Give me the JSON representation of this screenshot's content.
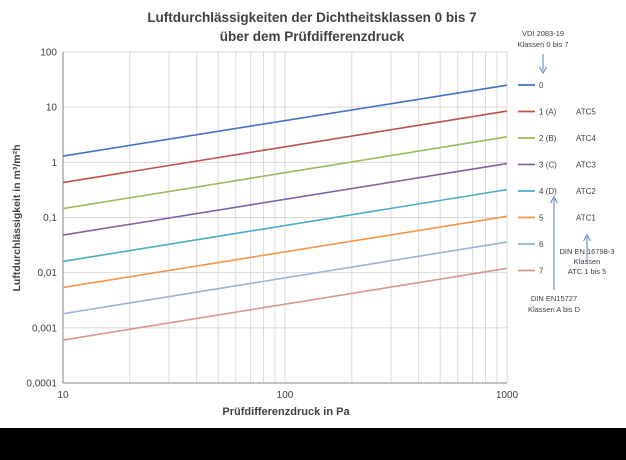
{
  "chart_data": {
    "type": "line",
    "title_lines": [
      "Luftdurchlässigkeiten der Dichtheitsklassen 0 bis 7",
      "über dem Prüfdifferenzdruck"
    ],
    "xlabel": "Prüfdifferenzdruck in Pa",
    "ylabel": "Luftdurchlässigkeit in m³/m²h",
    "x_scale": "log",
    "y_scale": "log",
    "xlim": [
      10,
      1000
    ],
    "ylim": [
      0.0001,
      100
    ],
    "x_ticks": [
      "10",
      "100",
      "1000"
    ],
    "y_ticks": [
      "0,0001",
      "0,001",
      "0,01",
      "0,1",
      "1",
      "10",
      "100"
    ],
    "grid": true,
    "legend_position": "right",
    "series": [
      {
        "name": "0",
        "atc": "",
        "color": "#4472c4",
        "x": [
          10,
          1000
        ],
        "values": [
          1.3,
          25
        ]
      },
      {
        "name": "1 (A)",
        "atc": "ATC5",
        "color": "#c0504d",
        "x": [
          10,
          1000
        ],
        "values": [
          0.43,
          8.5
        ]
      },
      {
        "name": "2 (B)",
        "atc": "ATC4",
        "color": "#9bbb59",
        "x": [
          10,
          1000
        ],
        "values": [
          0.145,
          2.9
        ]
      },
      {
        "name": "3 (C)",
        "atc": "ATC3",
        "color": "#8064a2",
        "x": [
          10,
          1000
        ],
        "values": [
          0.048,
          0.95
        ]
      },
      {
        "name": "4 (D)",
        "atc": "ATC2",
        "color": "#4bacc6",
        "x": [
          10,
          1000
        ],
        "values": [
          0.016,
          0.32
        ]
      },
      {
        "name": "5",
        "atc": "ATC1",
        "color": "#f79646",
        "x": [
          10,
          1000
        ],
        "values": [
          0.0054,
          0.105
        ]
      },
      {
        "name": "6",
        "atc": "",
        "color": "#95b3d7",
        "x": [
          10,
          1000
        ],
        "values": [
          0.0018,
          0.036
        ]
      },
      {
        "name": "7",
        "atc": "",
        "color": "#d99694",
        "x": [
          10,
          1000
        ],
        "values": [
          0.0006,
          0.012
        ]
      }
    ],
    "annotations": {
      "vdi": [
        "VDI 2083-19",
        "Klassen 0 bis 7"
      ],
      "din_en_16798": [
        "DIN EN 16798-3",
        "Klassen",
        "ATC 1 bis 5"
      ],
      "din_en_15727": [
        "DIN EN15727",
        "Klassen A bis D"
      ]
    },
    "colors": {
      "axis": "#868686",
      "grid": "#d9d9d9",
      "text": "#404040",
      "arrow": "#4f81bd"
    }
  }
}
